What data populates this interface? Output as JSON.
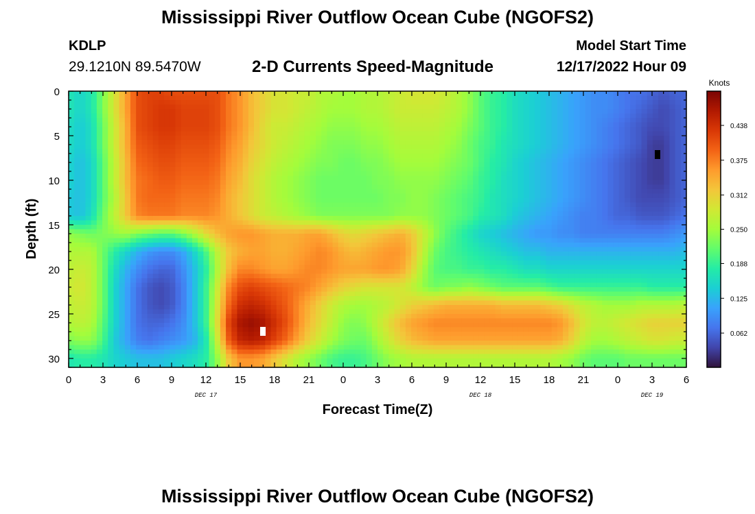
{
  "header": {
    "title": "Mississippi River Outflow Ocean Cube (NGOFS2)",
    "station_id": "KDLP",
    "station_coords": "29.1210N  89.5470W",
    "subtitle": "2-D Currents Speed-Magnitude",
    "model_start_label": "Model Start Time",
    "model_start_value": "12/17/2022 Hour 09"
  },
  "footer": {
    "title": "Mississippi River Outflow Ocean Cube (NGOFS2)"
  },
  "chart_data": {
    "type": "heatmap",
    "xlabel": "Forecast Time(Z)",
    "ylabel": "Depth (ft)",
    "x_range_hours": [
      0,
      54
    ],
    "y_range_ft": [
      0,
      31
    ],
    "y_inverted": true,
    "x_tick_labels": [
      "0",
      "3",
      "6",
      "9",
      "12",
      "15",
      "18",
      "21",
      "0",
      "3",
      "6",
      "9",
      "12",
      "15",
      "18",
      "21",
      "0",
      "3",
      "6"
    ],
    "y_ticks": [
      0,
      5,
      10,
      15,
      20,
      25,
      30
    ],
    "date_labels": [
      {
        "label": "DEC 17",
        "hour": 12
      },
      {
        "label": "DEC 18",
        "hour": 36
      },
      {
        "label": "DEC 19",
        "hour": 51
      }
    ],
    "colorbar": {
      "label": "Knots",
      "range": [
        0.0,
        0.5
      ],
      "ticks": [
        "0.438",
        "0.375",
        "0.312",
        "0.250",
        "0.188",
        "0.125",
        "0.062"
      ],
      "tick_values": [
        0.438,
        0.375,
        0.312,
        0.25,
        0.188,
        0.125,
        0.062
      ],
      "colors": [
        "#30123b",
        "#4145ab",
        "#4675ed",
        "#39a2fc",
        "#1bcfd4",
        "#24eca6",
        "#61fc6c",
        "#a4fc3b",
        "#d1e834",
        "#f3c63a",
        "#fe9b2d",
        "#f36315",
        "#d93806",
        "#b11901",
        "#7a0403"
      ]
    },
    "speed_field": {
      "description_units": "knots",
      "x_hours": [
        0,
        1,
        2,
        3,
        4,
        5,
        6,
        7,
        8,
        9,
        10,
        11,
        12,
        13,
        14,
        15,
        16,
        17,
        18,
        19,
        20,
        21,
        22,
        23,
        24,
        25,
        26,
        27,
        28,
        29,
        30,
        31,
        32,
        33,
        34,
        35,
        36,
        37,
        38,
        39,
        40,
        41,
        42,
        43,
        44,
        45,
        46,
        47,
        48,
        49,
        50,
        51,
        52,
        53,
        54
      ],
      "depth_ft": [
        0,
        2,
        4,
        6,
        8,
        10,
        12,
        14,
        16,
        18,
        20,
        22,
        24,
        26,
        28,
        30
      ],
      "values": [
        [
          0.17,
          0.15,
          0.17,
          0.23,
          0.29,
          0.35,
          0.41,
          0.42,
          0.42,
          0.41,
          0.41,
          0.41,
          0.41,
          0.41,
          0.38,
          0.36,
          0.33,
          0.31,
          0.29,
          0.29,
          0.28,
          0.28,
          0.26,
          0.26,
          0.25,
          0.25,
          0.26,
          0.26,
          0.27,
          0.28,
          0.29,
          0.29,
          0.29,
          0.28,
          0.26,
          0.24,
          0.21,
          0.19,
          0.18,
          0.16,
          0.15,
          0.14,
          0.13,
          0.12,
          0.11,
          0.1,
          0.09,
          0.09,
          0.08,
          0.07,
          0.07,
          0.06,
          0.05,
          0.06,
          0.06
        ],
        [
          0.17,
          0.15,
          0.17,
          0.23,
          0.29,
          0.35,
          0.41,
          0.42,
          0.43,
          0.43,
          0.42,
          0.42,
          0.42,
          0.41,
          0.38,
          0.36,
          0.33,
          0.31,
          0.29,
          0.29,
          0.28,
          0.27,
          0.26,
          0.25,
          0.25,
          0.25,
          0.26,
          0.26,
          0.27,
          0.28,
          0.28,
          0.28,
          0.28,
          0.27,
          0.26,
          0.24,
          0.21,
          0.19,
          0.18,
          0.16,
          0.15,
          0.14,
          0.13,
          0.12,
          0.11,
          0.1,
          0.09,
          0.09,
          0.08,
          0.07,
          0.06,
          0.05,
          0.04,
          0.05,
          0.06
        ],
        [
          0.16,
          0.14,
          0.16,
          0.22,
          0.28,
          0.34,
          0.41,
          0.42,
          0.43,
          0.43,
          0.42,
          0.42,
          0.42,
          0.41,
          0.38,
          0.36,
          0.33,
          0.3,
          0.28,
          0.28,
          0.27,
          0.26,
          0.25,
          0.24,
          0.24,
          0.24,
          0.25,
          0.25,
          0.26,
          0.27,
          0.27,
          0.27,
          0.27,
          0.26,
          0.25,
          0.23,
          0.21,
          0.19,
          0.18,
          0.16,
          0.15,
          0.14,
          0.13,
          0.12,
          0.11,
          0.1,
          0.09,
          0.08,
          0.07,
          0.06,
          0.05,
          0.04,
          0.04,
          0.05,
          0.06
        ],
        [
          0.16,
          0.14,
          0.16,
          0.22,
          0.28,
          0.34,
          0.4,
          0.41,
          0.42,
          0.42,
          0.41,
          0.41,
          0.41,
          0.4,
          0.37,
          0.35,
          0.32,
          0.3,
          0.28,
          0.27,
          0.26,
          0.25,
          0.24,
          0.23,
          0.23,
          0.23,
          0.24,
          0.24,
          0.25,
          0.26,
          0.26,
          0.26,
          0.26,
          0.25,
          0.24,
          0.22,
          0.2,
          0.19,
          0.17,
          0.16,
          0.15,
          0.14,
          0.13,
          0.12,
          0.11,
          0.1,
          0.09,
          0.08,
          0.07,
          0.06,
          0.05,
          0.03,
          0.03,
          0.05,
          0.06
        ],
        [
          0.15,
          0.13,
          0.15,
          0.21,
          0.27,
          0.33,
          0.39,
          0.4,
          0.41,
          0.41,
          0.4,
          0.4,
          0.4,
          0.39,
          0.36,
          0.34,
          0.31,
          0.29,
          0.27,
          0.26,
          0.25,
          0.24,
          0.23,
          0.23,
          0.22,
          0.22,
          0.23,
          0.23,
          0.24,
          0.25,
          0.25,
          0.25,
          0.25,
          0.24,
          0.23,
          0.22,
          0.2,
          0.18,
          0.17,
          0.15,
          0.14,
          0.13,
          0.12,
          0.11,
          0.1,
          0.09,
          0.08,
          0.07,
          0.06,
          0.05,
          0.04,
          0.03,
          0.03,
          0.05,
          0.06
        ],
        [
          0.15,
          0.13,
          0.15,
          0.21,
          0.27,
          0.33,
          0.38,
          0.39,
          0.4,
          0.4,
          0.39,
          0.39,
          0.39,
          0.38,
          0.35,
          0.33,
          0.3,
          0.28,
          0.26,
          0.25,
          0.24,
          0.23,
          0.22,
          0.22,
          0.22,
          0.22,
          0.22,
          0.23,
          0.23,
          0.24,
          0.24,
          0.24,
          0.24,
          0.23,
          0.22,
          0.21,
          0.19,
          0.18,
          0.16,
          0.15,
          0.14,
          0.13,
          0.12,
          0.11,
          0.1,
          0.09,
          0.08,
          0.07,
          0.06,
          0.05,
          0.04,
          0.03,
          0.03,
          0.05,
          0.06
        ],
        [
          0.14,
          0.13,
          0.15,
          0.21,
          0.26,
          0.32,
          0.38,
          0.39,
          0.39,
          0.39,
          0.38,
          0.38,
          0.38,
          0.37,
          0.34,
          0.32,
          0.3,
          0.28,
          0.26,
          0.25,
          0.24,
          0.23,
          0.22,
          0.22,
          0.22,
          0.22,
          0.22,
          0.22,
          0.23,
          0.23,
          0.24,
          0.24,
          0.23,
          0.22,
          0.21,
          0.2,
          0.19,
          0.17,
          0.16,
          0.15,
          0.14,
          0.13,
          0.12,
          0.11,
          0.1,
          0.09,
          0.08,
          0.07,
          0.06,
          0.05,
          0.04,
          0.04,
          0.04,
          0.05,
          0.06
        ],
        [
          0.14,
          0.13,
          0.16,
          0.22,
          0.27,
          0.32,
          0.37,
          0.38,
          0.38,
          0.38,
          0.37,
          0.37,
          0.37,
          0.36,
          0.34,
          0.32,
          0.3,
          0.28,
          0.27,
          0.26,
          0.25,
          0.24,
          0.23,
          0.23,
          0.23,
          0.23,
          0.23,
          0.23,
          0.23,
          0.24,
          0.24,
          0.24,
          0.23,
          0.22,
          0.21,
          0.2,
          0.18,
          0.17,
          0.16,
          0.14,
          0.13,
          0.12,
          0.11,
          0.1,
          0.09,
          0.08,
          0.08,
          0.07,
          0.06,
          0.06,
          0.05,
          0.05,
          0.05,
          0.06,
          0.07
        ],
        [
          0.24,
          0.23,
          0.22,
          0.23,
          0.24,
          0.25,
          0.23,
          0.22,
          0.21,
          0.21,
          0.23,
          0.26,
          0.3,
          0.33,
          0.35,
          0.36,
          0.36,
          0.35,
          0.34,
          0.34,
          0.34,
          0.35,
          0.35,
          0.33,
          0.31,
          0.3,
          0.31,
          0.32,
          0.33,
          0.34,
          0.32,
          0.28,
          0.24,
          0.21,
          0.19,
          0.17,
          0.15,
          0.14,
          0.13,
          0.12,
          0.11,
          0.1,
          0.1,
          0.09,
          0.09,
          0.08,
          0.08,
          0.08,
          0.08,
          0.08,
          0.08,
          0.08,
          0.08,
          0.09,
          0.1
        ],
        [
          0.26,
          0.26,
          0.26,
          0.22,
          0.18,
          0.15,
          0.12,
          0.1,
          0.09,
          0.09,
          0.11,
          0.15,
          0.2,
          0.27,
          0.32,
          0.34,
          0.35,
          0.35,
          0.34,
          0.34,
          0.35,
          0.36,
          0.37,
          0.36,
          0.34,
          0.33,
          0.34,
          0.35,
          0.36,
          0.36,
          0.33,
          0.27,
          0.22,
          0.2,
          0.19,
          0.18,
          0.17,
          0.16,
          0.15,
          0.14,
          0.13,
          0.13,
          0.12,
          0.12,
          0.12,
          0.12,
          0.12,
          0.12,
          0.12,
          0.12,
          0.12,
          0.12,
          0.12,
          0.12,
          0.13
        ],
        [
          0.27,
          0.28,
          0.27,
          0.22,
          0.16,
          0.12,
          0.09,
          0.07,
          0.06,
          0.06,
          0.09,
          0.13,
          0.18,
          0.26,
          0.33,
          0.37,
          0.37,
          0.36,
          0.35,
          0.35,
          0.36,
          0.37,
          0.37,
          0.36,
          0.35,
          0.35,
          0.35,
          0.36,
          0.36,
          0.35,
          0.31,
          0.25,
          0.21,
          0.2,
          0.2,
          0.19,
          0.19,
          0.18,
          0.18,
          0.17,
          0.16,
          0.16,
          0.15,
          0.15,
          0.15,
          0.15,
          0.15,
          0.15,
          0.15,
          0.15,
          0.15,
          0.15,
          0.15,
          0.15,
          0.15
        ],
        [
          0.28,
          0.29,
          0.27,
          0.22,
          0.15,
          0.11,
          0.07,
          0.05,
          0.04,
          0.05,
          0.08,
          0.13,
          0.19,
          0.28,
          0.37,
          0.41,
          0.42,
          0.41,
          0.4,
          0.39,
          0.38,
          0.37,
          0.35,
          0.33,
          0.31,
          0.3,
          0.29,
          0.29,
          0.29,
          0.29,
          0.27,
          0.24,
          0.22,
          0.23,
          0.23,
          0.24,
          0.23,
          0.22,
          0.21,
          0.21,
          0.21,
          0.21,
          0.2,
          0.19,
          0.19,
          0.19,
          0.19,
          0.19,
          0.19,
          0.19,
          0.19,
          0.18,
          0.18,
          0.18,
          0.18
        ],
        [
          0.27,
          0.28,
          0.27,
          0.22,
          0.15,
          0.11,
          0.07,
          0.05,
          0.04,
          0.05,
          0.08,
          0.13,
          0.19,
          0.29,
          0.39,
          0.44,
          0.45,
          0.44,
          0.42,
          0.4,
          0.37,
          0.34,
          0.31,
          0.28,
          0.26,
          0.25,
          0.25,
          0.26,
          0.27,
          0.29,
          0.31,
          0.32,
          0.33,
          0.34,
          0.34,
          0.34,
          0.34,
          0.34,
          0.33,
          0.33,
          0.33,
          0.33,
          0.32,
          0.31,
          0.29,
          0.27,
          0.26,
          0.25,
          0.25,
          0.25,
          0.26,
          0.26,
          0.26,
          0.26,
          0.27
        ],
        [
          0.26,
          0.27,
          0.26,
          0.21,
          0.15,
          0.11,
          0.07,
          0.06,
          0.06,
          0.07,
          0.09,
          0.13,
          0.19,
          0.3,
          0.42,
          0.47,
          0.48,
          0.47,
          0.44,
          0.41,
          0.37,
          0.33,
          0.3,
          0.27,
          0.24,
          0.23,
          0.24,
          0.27,
          0.3,
          0.33,
          0.35,
          0.36,
          0.37,
          0.37,
          0.37,
          0.37,
          0.37,
          0.37,
          0.37,
          0.37,
          0.37,
          0.37,
          0.37,
          0.36,
          0.33,
          0.29,
          0.27,
          0.27,
          0.28,
          0.29,
          0.3,
          0.31,
          0.31,
          0.31,
          0.31
        ],
        [
          0.23,
          0.24,
          0.24,
          0.2,
          0.14,
          0.11,
          0.08,
          0.07,
          0.08,
          0.09,
          0.1,
          0.12,
          0.17,
          0.28,
          0.4,
          0.45,
          0.46,
          0.45,
          0.42,
          0.39,
          0.35,
          0.31,
          0.28,
          0.25,
          0.23,
          0.22,
          0.22,
          0.25,
          0.28,
          0.31,
          0.33,
          0.34,
          0.35,
          0.35,
          0.35,
          0.35,
          0.35,
          0.35,
          0.35,
          0.35,
          0.35,
          0.35,
          0.35,
          0.34,
          0.31,
          0.27,
          0.25,
          0.25,
          0.26,
          0.27,
          0.28,
          0.29,
          0.29,
          0.28,
          0.28
        ],
        [
          0.17,
          0.18,
          0.18,
          0.17,
          0.15,
          0.14,
          0.13,
          0.13,
          0.13,
          0.14,
          0.15,
          0.16,
          0.18,
          0.24,
          0.32,
          0.36,
          0.36,
          0.35,
          0.32,
          0.29,
          0.26,
          0.24,
          0.22,
          0.2,
          0.19,
          0.19,
          0.2,
          0.22,
          0.24,
          0.25,
          0.26,
          0.26,
          0.26,
          0.26,
          0.26,
          0.26,
          0.26,
          0.26,
          0.26,
          0.26,
          0.26,
          0.26,
          0.26,
          0.25,
          0.24,
          0.22,
          0.21,
          0.21,
          0.21,
          0.22,
          0.22,
          0.22,
          0.22,
          0.22,
          0.22
        ]
      ]
    }
  }
}
